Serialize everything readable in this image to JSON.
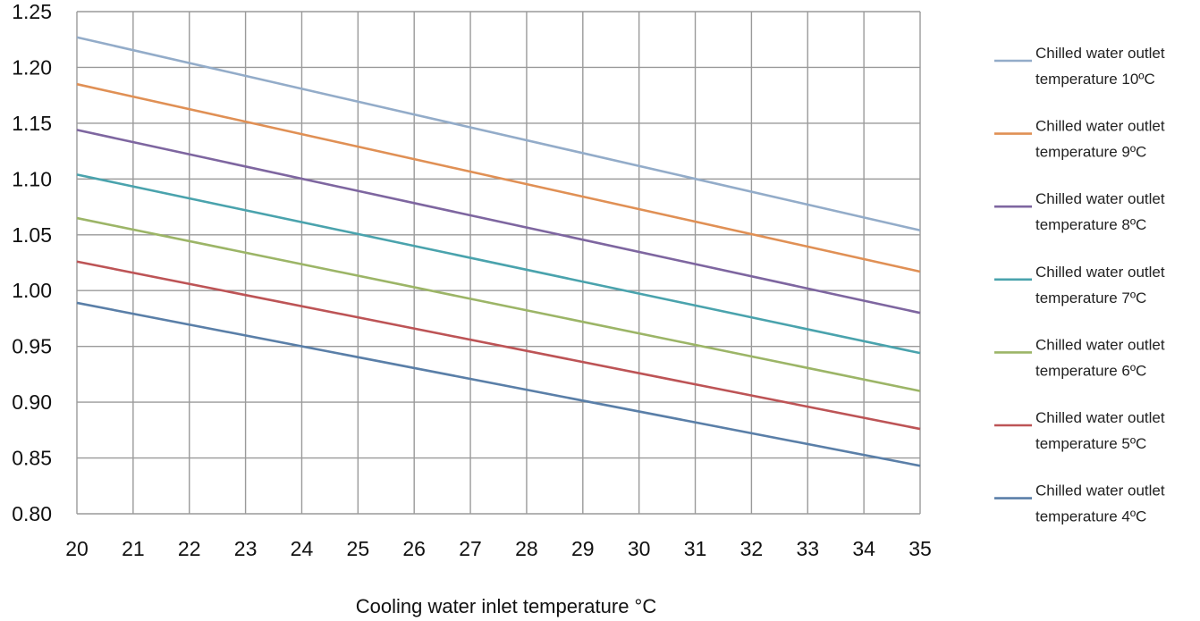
{
  "chart_data": {
    "type": "line",
    "title": "",
    "xlabel": "Cooling water inlet temperature °C",
    "ylabel": "",
    "xlim": [
      20,
      35
    ],
    "ylim": [
      0.8,
      1.25
    ],
    "x_ticks": [
      "20",
      "21",
      "22",
      "23",
      "24",
      "25",
      "26",
      "27",
      "28",
      "29",
      "30",
      "31",
      "32",
      "33",
      "34",
      "35"
    ],
    "y_ticks": [
      "0.80",
      "0.85",
      "0.90",
      "0.95",
      "1.00",
      "1.05",
      "1.10",
      "1.15",
      "1.20",
      "1.25"
    ],
    "grid": true,
    "legend_position": "right",
    "series": [
      {
        "name": [
          "Chilled water outlet",
          "temperature 10ºC"
        ],
        "color": "#93acc9",
        "x": [
          20,
          35
        ],
        "y": [
          1.227,
          1.054
        ]
      },
      {
        "name": [
          "Chilled water outlet",
          "temperature 9ºC"
        ],
        "color": "#e09055",
        "x": [
          20,
          35
        ],
        "y": [
          1.185,
          1.017
        ]
      },
      {
        "name": [
          "Chilled water outlet",
          "temperature 8ºC"
        ],
        "color": "#7e66a0",
        "x": [
          20,
          35
        ],
        "y": [
          1.144,
          0.98
        ]
      },
      {
        "name": [
          "Chilled water outlet",
          "temperature 7ºC"
        ],
        "color": "#4aa3ad",
        "x": [
          20,
          35
        ],
        "y": [
          1.104,
          0.944
        ]
      },
      {
        "name": [
          "Chilled water outlet",
          "temperature 6ºC"
        ],
        "color": "#9cb567",
        "x": [
          20,
          35
        ],
        "y": [
          1.065,
          0.91
        ]
      },
      {
        "name": [
          "Chilled water outlet",
          "temperature 5ºC"
        ],
        "color": "#bd5456",
        "x": [
          20,
          35
        ],
        "y": [
          1.026,
          0.876
        ]
      },
      {
        "name": [
          "Chilled water outlet",
          "temperature 4ºC"
        ],
        "color": "#5a7fa8",
        "x": [
          20,
          35
        ],
        "y": [
          0.989,
          0.843
        ]
      }
    ]
  }
}
